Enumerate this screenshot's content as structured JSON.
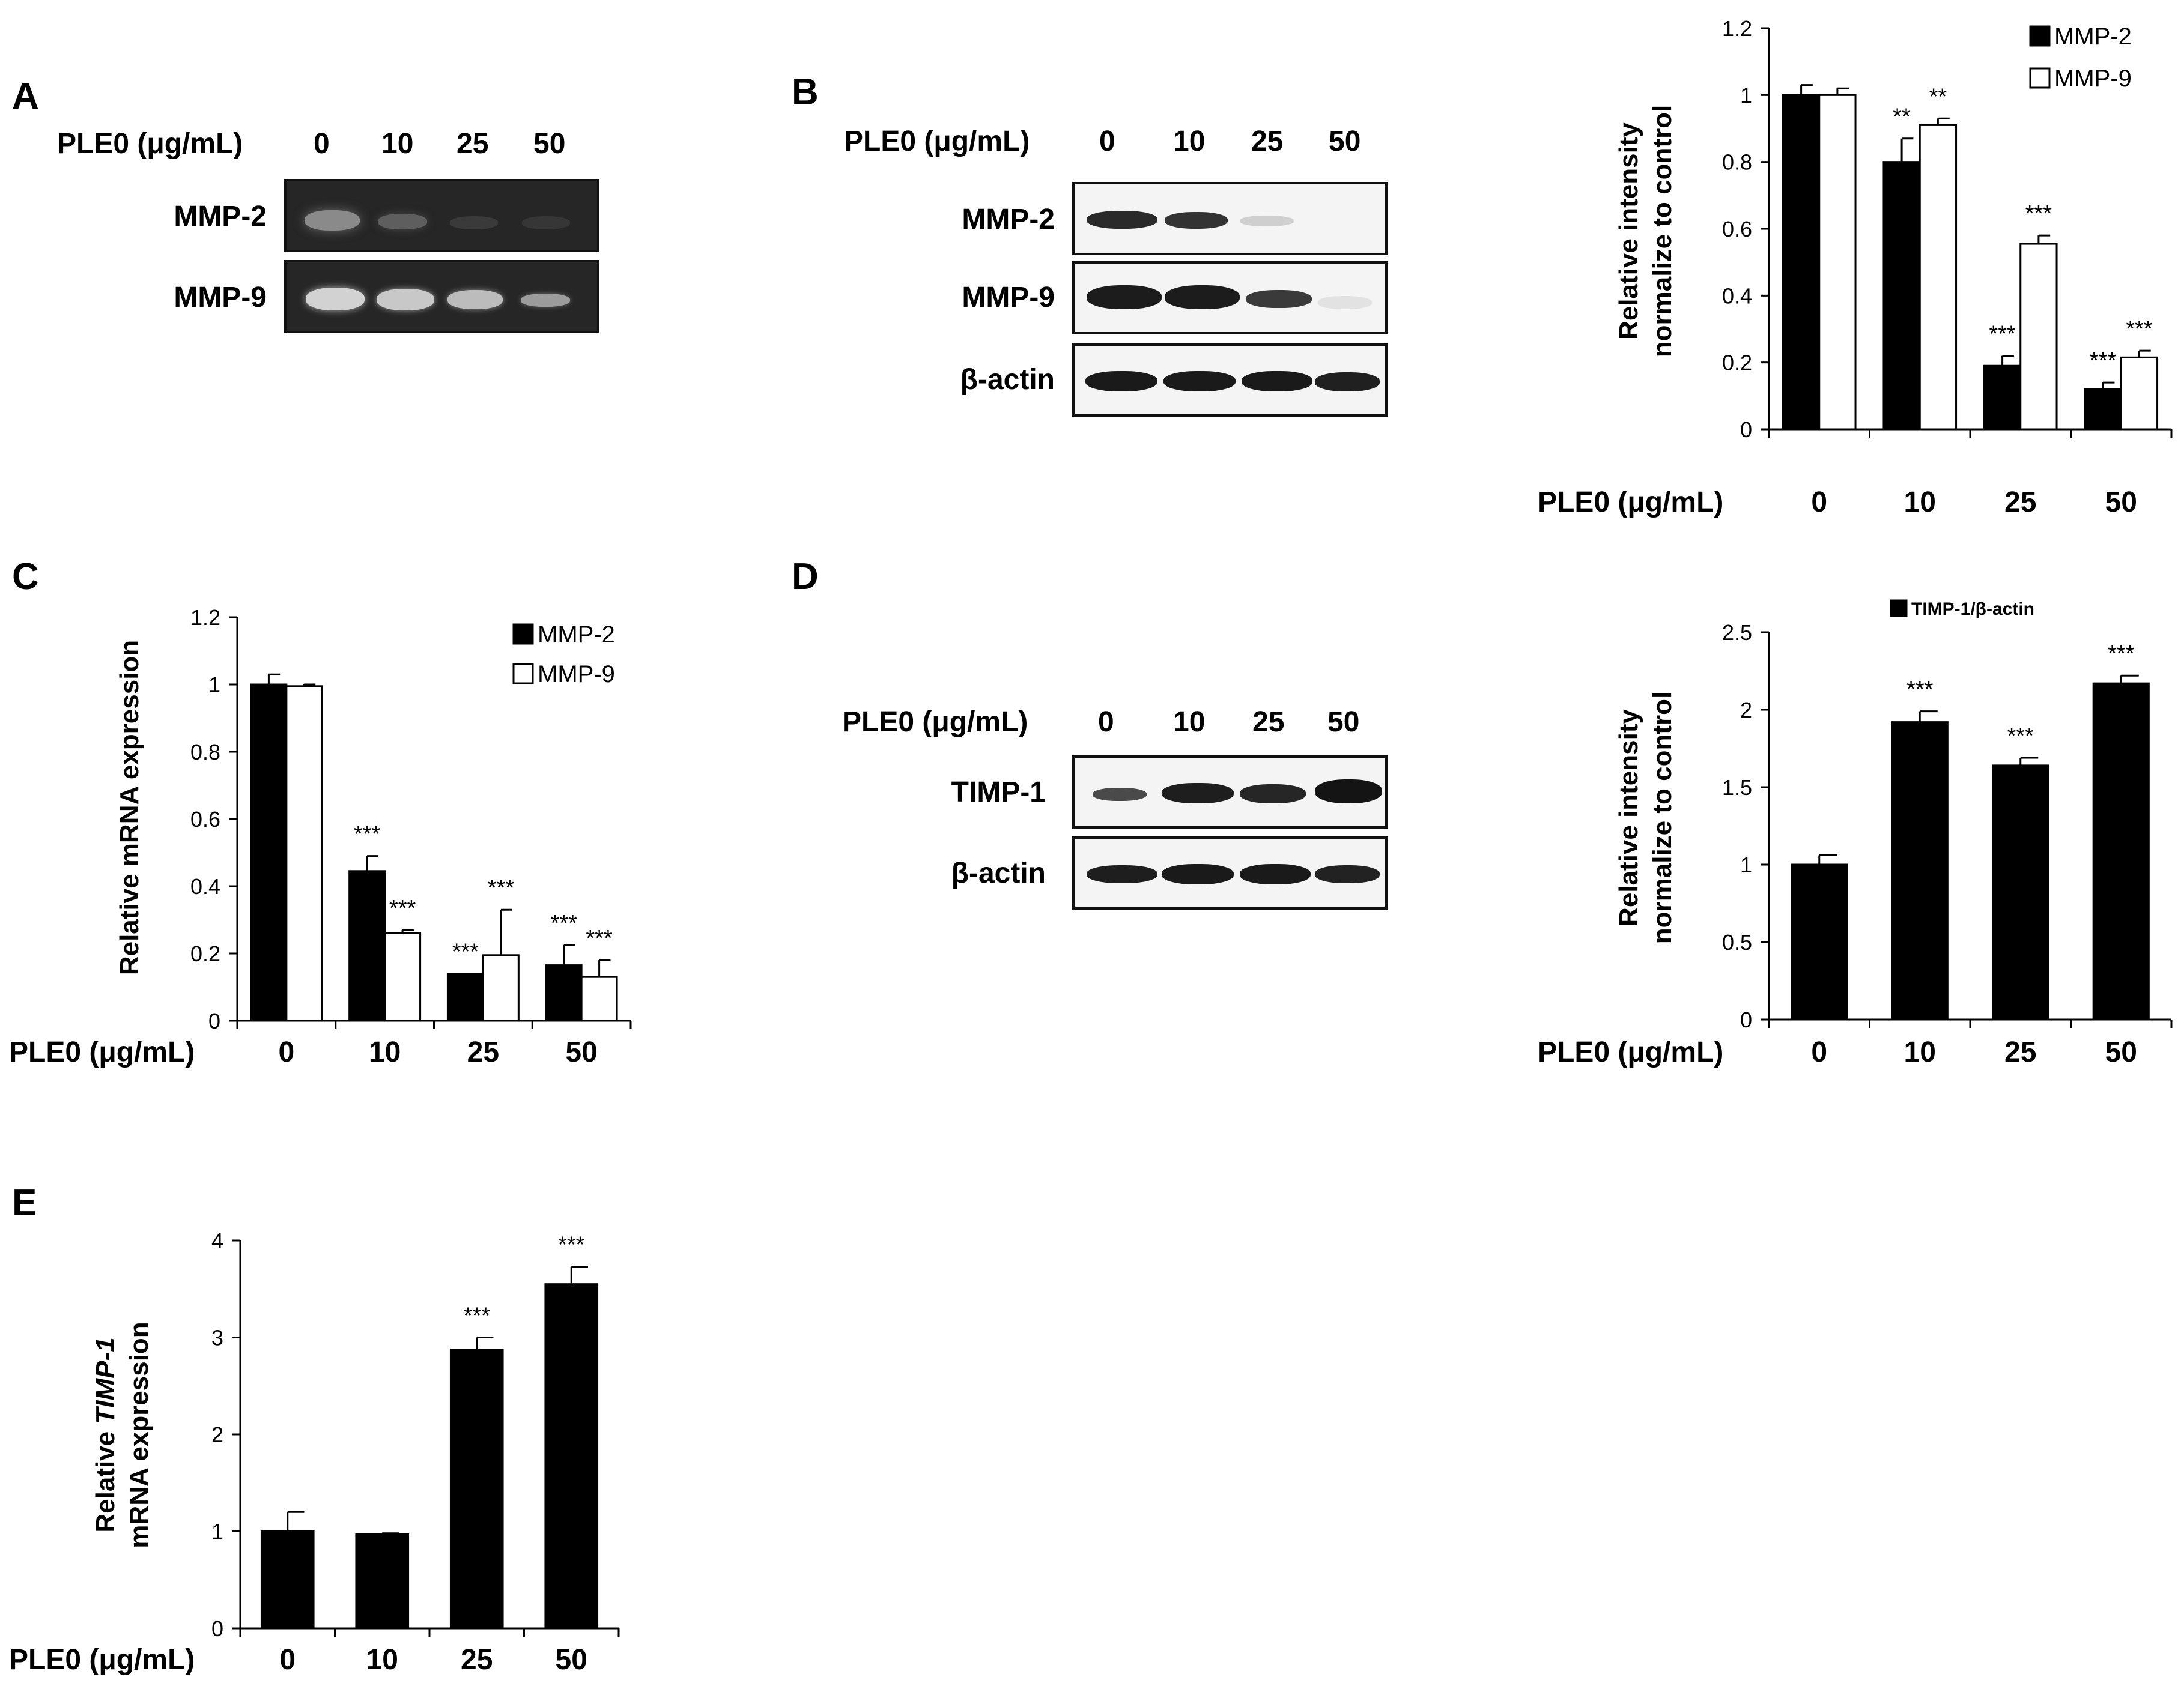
{
  "panels": {
    "A": {
      "letter": "A",
      "lane_header": "PLE0 (μg/mL)",
      "lanes": [
        "0",
        "10",
        "25",
        "50"
      ],
      "blots": [
        "MMP-2",
        "MMP-9"
      ]
    },
    "B": {
      "letter": "B",
      "lane_header": "PLE0 (μg/mL)",
      "lanes": [
        "0",
        "10",
        "25",
        "50"
      ],
      "blots": [
        "MMP-2",
        "MMP-9",
        "β-actin"
      ]
    },
    "C": {
      "letter": "C"
    },
    "D": {
      "letter": "D",
      "lane_header": "PLE0 (μg/mL)",
      "lanes": [
        "0",
        "10",
        "25",
        "50"
      ],
      "blots": [
        "TIMP-1",
        "β-actin"
      ]
    },
    "E": {
      "letter": "E"
    }
  },
  "chart_data": [
    {
      "id": "B",
      "type": "bar",
      "categories": [
        "0",
        "10",
        "25",
        "50"
      ],
      "category_label": "PLE0 (μg/mL)",
      "ylabel": [
        "Relative intensity",
        "normalize to control"
      ],
      "ylim": [
        0,
        1.2
      ],
      "yticks": [
        "0",
        "0.2",
        "0.4",
        "0.6",
        "0.8",
        "1",
        "1.2"
      ],
      "legend_position": "top-right",
      "series": [
        {
          "name": "MMP-2",
          "color": "#000000",
          "values": [
            1.0,
            0.8,
            0.19,
            0.12
          ],
          "errors": [
            0.03,
            0.07,
            0.03,
            0.02
          ],
          "marks": [
            "",
            "**",
            "***",
            "***"
          ]
        },
        {
          "name": "MMP-9",
          "color": "#ffffff",
          "values": [
            1.0,
            0.91,
            0.555,
            0.215
          ],
          "errors": [
            0.02,
            0.02,
            0.025,
            0.02
          ],
          "marks": [
            "",
            "**",
            "***",
            "***"
          ]
        }
      ]
    },
    {
      "id": "C",
      "type": "bar",
      "categories": [
        "0",
        "10",
        "25",
        "50"
      ],
      "category_label": "PLE0 (μg/mL)",
      "ylabel": [
        "Relative mRNA expression"
      ],
      "ylim": [
        0,
        1.2
      ],
      "yticks": [
        "0",
        "0.2",
        "0.4",
        "0.6",
        "0.8",
        "1",
        "1.2"
      ],
      "legend_position": "top-right",
      "series": [
        {
          "name": "MMP-2",
          "color": "#000000",
          "values": [
            1.0,
            0.445,
            0.14,
            0.165
          ],
          "errors": [
            0.03,
            0.045,
            0.0,
            0.06
          ],
          "marks": [
            "",
            "***",
            "***",
            "***"
          ]
        },
        {
          "name": "MMP-9",
          "color": "#ffffff",
          "values": [
            0.995,
            0.26,
            0.195,
            0.13
          ],
          "errors": [
            0.005,
            0.01,
            0.135,
            0.05
          ],
          "marks": [
            "",
            "***",
            "***",
            "***"
          ]
        }
      ]
    },
    {
      "id": "D",
      "type": "bar",
      "categories": [
        "0",
        "10",
        "25",
        "50"
      ],
      "category_label": "PLE0 (μg/mL)",
      "ylabel": [
        "Relative intensity",
        "normalize to control"
      ],
      "ylim": [
        0,
        2.5
      ],
      "yticks": [
        "0",
        "0.5",
        "1",
        "1.5",
        "2",
        "2.5"
      ],
      "legend_position": "top",
      "series": [
        {
          "name": "TIMP-1/β-actin",
          "color": "#000000",
          "values": [
            1.0,
            1.92,
            1.64,
            2.17
          ],
          "errors": [
            0.06,
            0.07,
            0.05,
            0.05
          ],
          "marks": [
            "",
            "***",
            "***",
            "***"
          ]
        }
      ]
    },
    {
      "id": "E",
      "type": "bar",
      "categories": [
        "0",
        "10",
        "25",
        "50"
      ],
      "category_label": "PLE0 (μg/mL)",
      "ylabel_prefix": "Relative ",
      "ylabel_italic": "TIMP-1",
      "ylabel_line2": "mRNA expression",
      "ylim": [
        0,
        4
      ],
      "yticks": [
        "0",
        "1",
        "2",
        "3",
        "4"
      ],
      "series": [
        {
          "name": "",
          "color": "#000000",
          "values": [
            1.0,
            0.97,
            2.87,
            3.55
          ],
          "errors": [
            0.2,
            0.01,
            0.13,
            0.18
          ],
          "marks": [
            "",
            "",
            "***",
            "***"
          ]
        }
      ]
    }
  ]
}
